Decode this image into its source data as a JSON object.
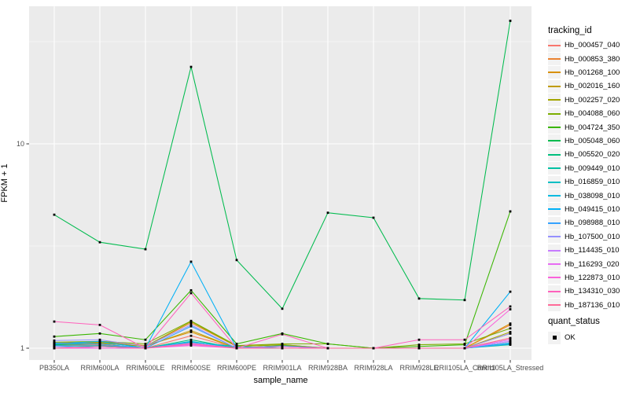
{
  "figure": {
    "panel_bg": "#ebebeb",
    "grid_color": "#ffffff",
    "tick_color": "#333333",
    "axis_text_color": "#4d4d4d",
    "point_color": "#000000",
    "legend_key_bg": "#f2f2f2"
  },
  "axes": {
    "x_title": "sample_name",
    "y_title": "FPKM + 1",
    "y_major_ticks": [
      {
        "label": "10",
        "value": 10
      },
      {
        "label": "1",
        "value": 1
      }
    ],
    "y_minor_values": [
      31.623,
      3.1623
    ]
  },
  "legend": {
    "color_title": "tracking_id",
    "shape_title": "quant_status",
    "shape_items": [
      {
        "label": "OK",
        "shape": "black-square-point"
      }
    ]
  },
  "chart_data": {
    "type": "line",
    "y_scale": "log10",
    "ylabel": "FPKM + 1",
    "xlabel": "sample_name",
    "ylim_log10": [
      -0.06,
      1.67
    ],
    "grid": true,
    "legend_position": "right",
    "point_marker": "small-black-square",
    "x_categories": [
      "PB350LA",
      "RRIM600LA",
      "RRIM600LE",
      "RRIM600SE",
      "RRIM600PE",
      "RRIM901LA",
      "RRIM928BA",
      "RRIM928LA",
      "RRIM928LE",
      "RRII105LA_Control",
      "RRII105LA_Stressed"
    ],
    "series": [
      {
        "name": "Hb_000457_040",
        "color": "#F8766D",
        "values": [
          1.03,
          1.04,
          1.0,
          1.15,
          1.0,
          1.02,
          1.0,
          1.0,
          1.0,
          1.0,
          1.12
        ]
      },
      {
        "name": "Hb_000853_380",
        "color": "#EA8331",
        "values": [
          1.04,
          1.06,
          1.02,
          1.33,
          1.02,
          1.04,
          1.0,
          1.0,
          1.0,
          1.0,
          1.3
        ]
      },
      {
        "name": "Hb_001268_100",
        "color": "#D89000",
        "values": [
          1.05,
          1.08,
          1.03,
          1.2,
          1.0,
          1.02,
          1.0,
          1.0,
          1.0,
          1.0,
          1.32
        ]
      },
      {
        "name": "Hb_002016_160",
        "color": "#C09B00",
        "values": [
          1.06,
          1.07,
          1.02,
          1.22,
          1.0,
          1.03,
          1.0,
          1.0,
          1.0,
          1.0,
          1.18
        ]
      },
      {
        "name": "Hb_002257_020",
        "color": "#A3A500",
        "values": [
          1.05,
          1.06,
          1.02,
          1.35,
          1.02,
          1.04,
          1.0,
          1.0,
          1.0,
          1.0,
          1.2
        ]
      },
      {
        "name": "Hb_004088_060",
        "color": "#7CAE00",
        "values": [
          1.07,
          1.08,
          1.05,
          1.36,
          1.03,
          1.05,
          1.05,
          1.0,
          1.04,
          1.05,
          1.25
        ]
      },
      {
        "name": "Hb_004724_350",
        "color": "#39B600",
        "values": [
          1.14,
          1.18,
          1.1,
          1.92,
          1.05,
          1.18,
          1.05,
          1.0,
          1.02,
          1.04,
          4.67
        ]
      },
      {
        "name": "Hb_005048_060",
        "color": "#00BB4E",
        "values": [
          4.5,
          3.3,
          3.05,
          23.8,
          2.7,
          1.56,
          4.6,
          4.35,
          1.75,
          1.72,
          40.0
        ]
      },
      {
        "name": "Hb_005520_020",
        "color": "#00BF7D",
        "values": [
          1.04,
          1.05,
          1.0,
          1.1,
          1.0,
          1.03,
          1.0,
          1.0,
          1.0,
          1.0,
          1.05
        ]
      },
      {
        "name": "Hb_009449_010",
        "color": "#00C1A3",
        "values": [
          1.0,
          1.02,
          1.0,
          1.06,
          1.0,
          1.0,
          1.0,
          1.0,
          1.0,
          1.0,
          1.04
        ]
      },
      {
        "name": "Hb_016859_010",
        "color": "#00BFC4",
        "values": [
          1.02,
          1.03,
          1.0,
          1.07,
          1.02,
          1.0,
          1.0,
          1.0,
          1.0,
          1.0,
          1.08
        ]
      },
      {
        "name": "Hb_038098_010",
        "color": "#00BAE0",
        "values": [
          1.03,
          1.02,
          1.0,
          1.08,
          1.0,
          1.0,
          1.0,
          1.0,
          1.0,
          1.0,
          1.06
        ]
      },
      {
        "name": "Hb_049415_010",
        "color": "#00B0F6",
        "values": [
          1.05,
          1.08,
          1.0,
          2.65,
          1.0,
          1.0,
          1.0,
          1.0,
          1.0,
          1.0,
          1.89
        ]
      },
      {
        "name": "Hb_098988_010",
        "color": "#35A2FF",
        "values": [
          1.06,
          1.05,
          1.0,
          1.28,
          1.0,
          1.0,
          1.0,
          1.0,
          1.0,
          1.0,
          1.05
        ]
      },
      {
        "name": "Hb_107500_010",
        "color": "#9590FF",
        "values": [
          1.09,
          1.1,
          1.02,
          1.3,
          1.0,
          1.02,
          1.0,
          1.0,
          1.0,
          1.0,
          1.18
        ]
      },
      {
        "name": "Hb_114435_010",
        "color": "#C77CFF",
        "values": [
          1.02,
          1.0,
          1.0,
          1.06,
          1.0,
          1.0,
          1.0,
          1.0,
          1.0,
          1.0,
          1.08
        ]
      },
      {
        "name": "Hb_116293_020",
        "color": "#E76BF3",
        "values": [
          1.0,
          1.0,
          1.0,
          1.04,
          1.0,
          1.02,
          1.0,
          1.0,
          1.0,
          1.0,
          1.1
        ]
      },
      {
        "name": "Hb_122873_010",
        "color": "#FA62DB",
        "values": [
          1.0,
          1.0,
          1.0,
          1.03,
          1.0,
          1.0,
          1.0,
          1.0,
          1.0,
          1.0,
          1.55
        ]
      },
      {
        "name": "Hb_134310_030",
        "color": "#FF62BC",
        "values": [
          1.35,
          1.3,
          1.0,
          1.86,
          1.0,
          1.17,
          1.0,
          1.0,
          1.1,
          1.1,
          1.6
        ]
      },
      {
        "name": "Hb_187136_010",
        "color": "#FF6A98",
        "values": [
          1.0,
          1.02,
          1.0,
          1.05,
          1.0,
          1.0,
          1.0,
          1.0,
          1.0,
          1.0,
          1.12
        ]
      }
    ]
  }
}
